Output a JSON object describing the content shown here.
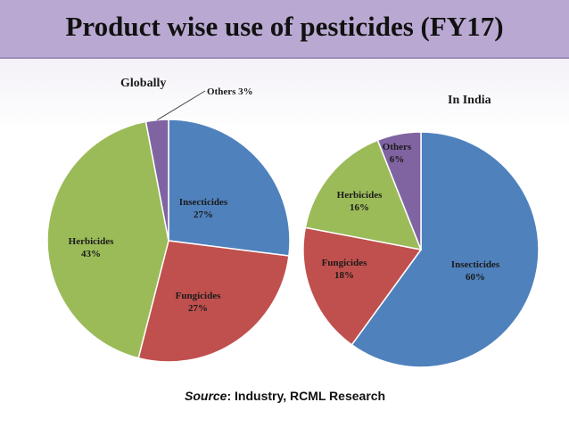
{
  "slide_title": "Product wise use of pesticides (FY17)",
  "source": {
    "prefix": "Source",
    "text": ": Industry, RCML Research"
  },
  "chart_data": [
    {
      "type": "pie",
      "title": "Globally",
      "slices": [
        {
          "name": "Insecticides",
          "value": 27,
          "label": "27%",
          "color": "#4f81bd"
        },
        {
          "name": "Fungicides",
          "value": 27,
          "label": "27%",
          "color": "#c0504d"
        },
        {
          "name": "Herbicides",
          "value": 43,
          "label": "43%",
          "color": "#9bbb59"
        },
        {
          "name": "Others",
          "value": 3,
          "label": "Others 3%",
          "color": "#8064a2"
        }
      ]
    },
    {
      "type": "pie",
      "title": "In India",
      "slices": [
        {
          "name": "Insecticides",
          "value": 60,
          "label": "60%",
          "color": "#4f81bd"
        },
        {
          "name": "Fungicides",
          "value": 18,
          "label": "18%",
          "color": "#c0504d"
        },
        {
          "name": "Herbicides",
          "value": 16,
          "label": "16%",
          "color": "#9bbb59"
        },
        {
          "name": "Others",
          "value": 6,
          "label": "6%",
          "color": "#8064a2"
        }
      ]
    }
  ]
}
